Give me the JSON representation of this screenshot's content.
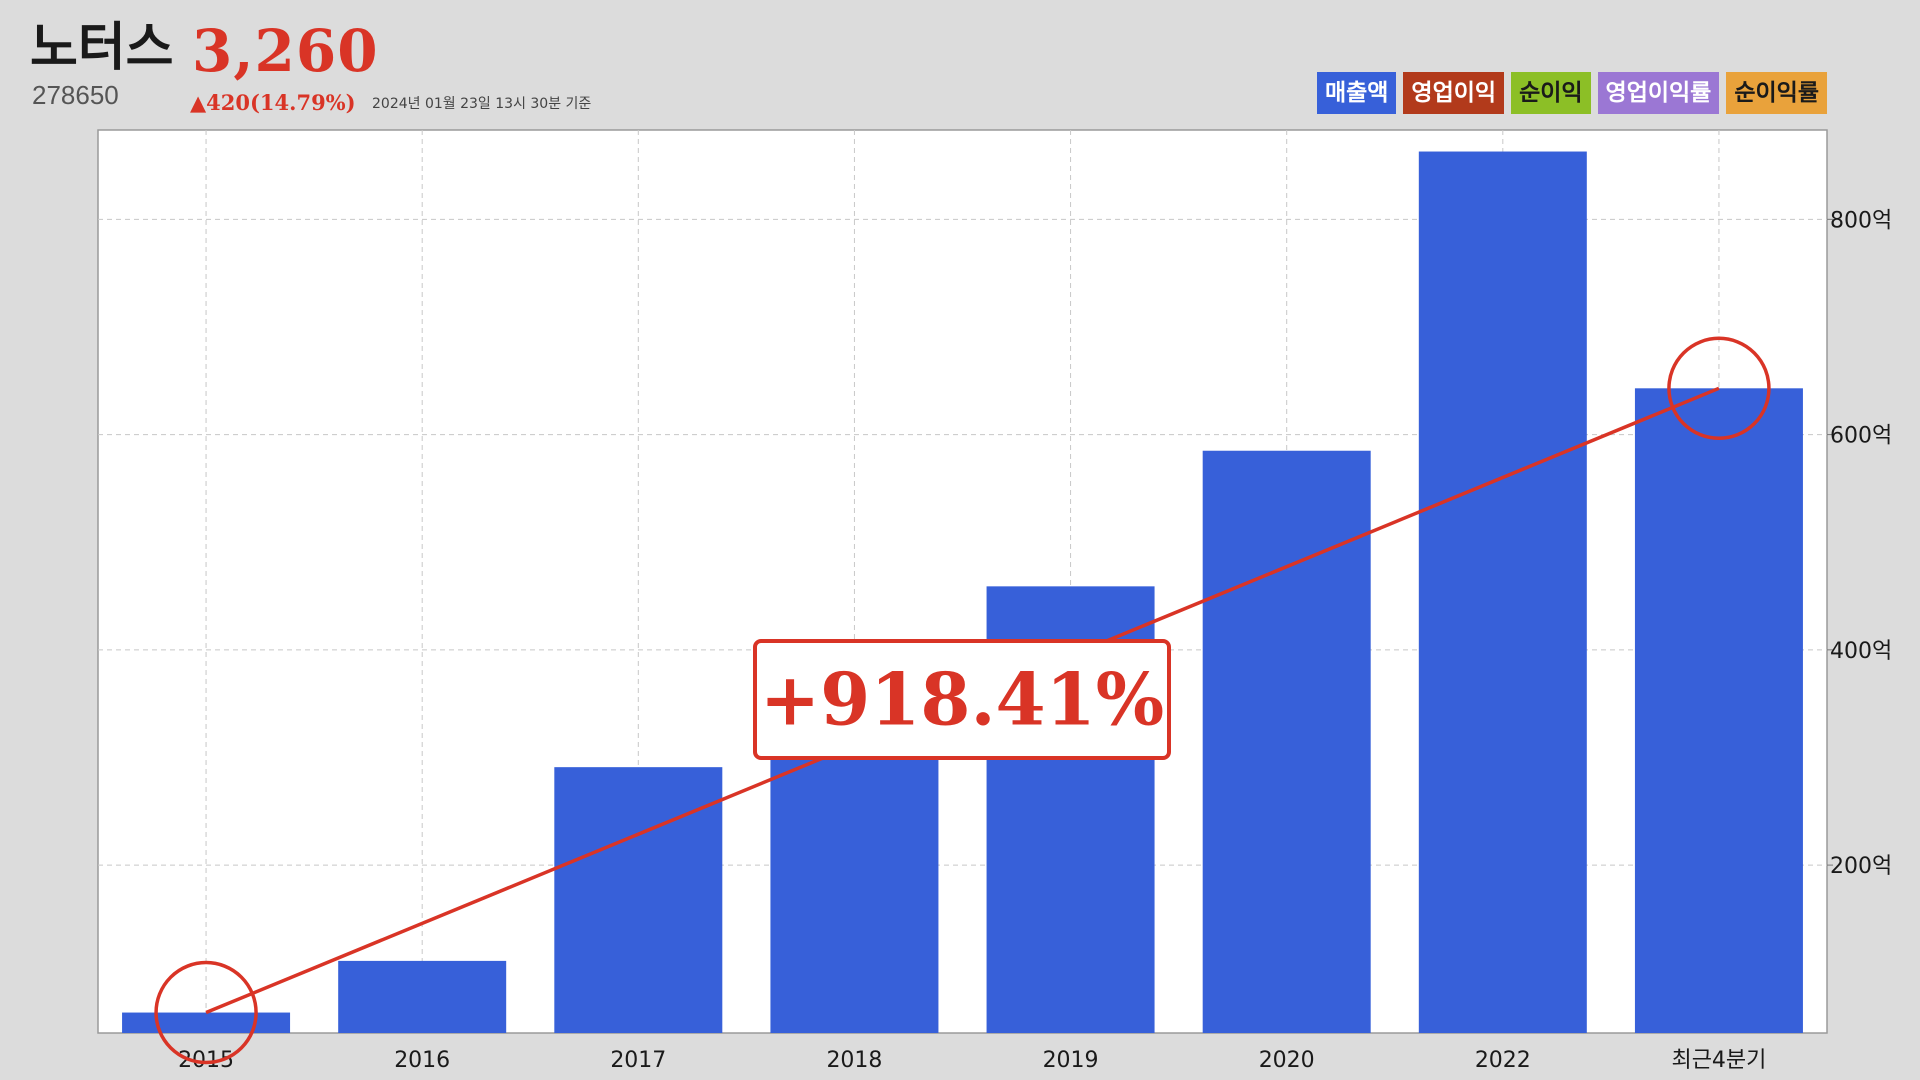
{
  "stock": {
    "name": "노터스",
    "price": "3,260",
    "code": "278650",
    "change": "▲420(14.79%)",
    "as_of": "2024년 01월 23일 13시 30분 기준"
  },
  "legend": [
    {
      "label": "매출액",
      "bg": "#3760d9",
      "fg": "#ffffff"
    },
    {
      "label": "영업이익",
      "bg": "#b23a1b",
      "fg": "#ffffff"
    },
    {
      "label": "순이익",
      "bg": "#8cbf26",
      "fg": "#1a1a1a"
    },
    {
      "label": "영업이익률",
      "bg": "#9b77d4",
      "fg": "#ffffff"
    },
    {
      "label": "순이익률",
      "bg": "#e9a23b",
      "fg": "#1a1a1a"
    }
  ],
  "colors": {
    "bar": "#3760d9",
    "accent": "#d93426"
  },
  "annotation": {
    "growth_label": "+918.41%",
    "from_category": "2015",
    "to_category": "최근4분기"
  },
  "chart_data": {
    "type": "bar",
    "categories": [
      "2015",
      "2016",
      "2017",
      "2018",
      "2019",
      "2020",
      "2022",
      "최근4분기"
    ],
    "series": [
      {
        "name": "매출액",
        "values": [
          63,
          111,
          291,
          310,
          459,
          585,
          863,
          643
        ]
      }
    ],
    "y_unit": "억",
    "y_ticks": [
      200,
      400,
      600,
      800
    ],
    "y_tick_labels": [
      "200억",
      "400억",
      "600억",
      "800억"
    ],
    "ylim": [
      44,
      883
    ],
    "y_axis_position": "right",
    "grid": true
  }
}
